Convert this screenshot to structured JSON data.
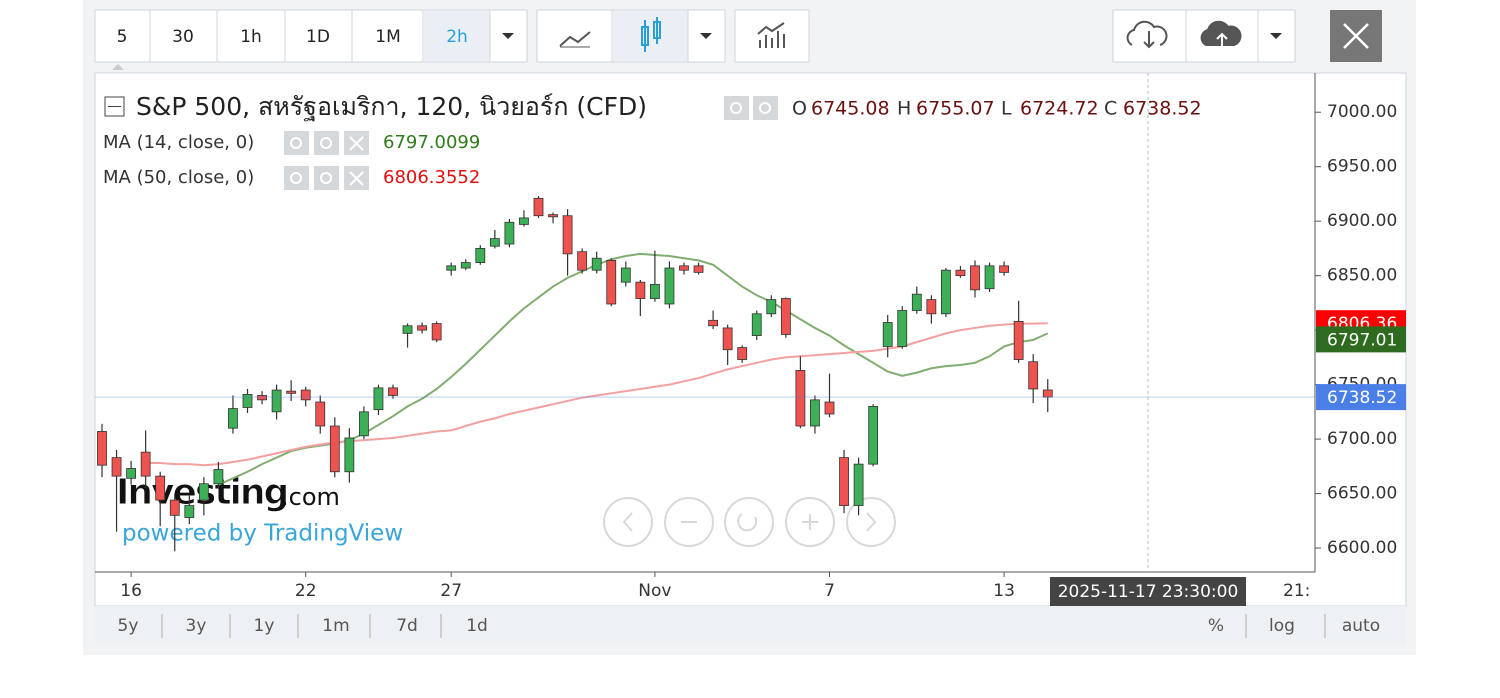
{
  "toolbar": {
    "intervals": [
      "5",
      "30",
      "1h",
      "1D",
      "1M",
      "2h"
    ],
    "active_interval_index": 5
  },
  "chart_data": {
    "type": "candlestick",
    "title": "S&P 500, สหรัฐอเมริกา, 120, นิวยอร์ก (CFD)",
    "ohlc_letters": [
      "O",
      "H",
      "L",
      "C"
    ],
    "categories": [
      null,
      null,
      "16",
      null,
      null,
      null,
      null,
      null,
      null,
      null,
      null,
      null,
      null,
      null,
      "22",
      null,
      null,
      null,
      null,
      null,
      null,
      null,
      null,
      null,
      "27",
      null,
      null,
      null,
      null,
      null,
      null,
      null,
      null,
      null,
      null,
      null,
      null,
      null,
      "Nov",
      null,
      null,
      null,
      null,
      null,
      null,
      null,
      null,
      null,
      null,
      null,
      "7",
      null,
      null,
      null,
      null,
      null,
      null,
      null,
      null,
      null,
      null,
      null,
      "13",
      null,
      null,
      null
    ],
    "open": [
      6707,
      6683,
      6664,
      6688,
      6666,
      6644,
      6628,
      6644,
      6659,
      6710,
      6729,
      6740,
      6725,
      6744,
      6745,
      6734,
      6712,
      6670,
      6703,
      6727,
      6747,
      6797,
      6804,
      6806,
      6855,
      6857,
      6862,
      6877,
      6879,
      6897,
      6921,
      6906,
      6905,
      6872,
      6855,
      6864,
      6844,
      6844,
      6829,
      6824,
      6859,
      6859,
      6809,
      6802,
      6784,
      6795,
      6815,
      6829,
      6763,
      6712,
      6734,
      6683,
      6639,
      6677,
      6785,
      6785,
      6818,
      6828,
      6815,
      6855,
      6859,
      6838,
      6859,
      6808,
      6771,
      6745.08
    ],
    "high": [
      6714,
      6690,
      6680,
      6708,
      6670,
      6650,
      6648,
      6665,
      6679,
      6740,
      6746,
      6744,
      6750,
      6754,
      6748,
      6740,
      6720,
      6710,
      6730,
      6750,
      6750,
      6806,
      6807,
      6808,
      6862,
      6865,
      6878,
      6892,
      6902,
      6910,
      6923,
      6908,
      6911,
      6875,
      6872,
      6866,
      6863,
      6846,
      6873,
      6863,
      6862,
      6862,
      6818,
      6805,
      6786,
      6818,
      6832,
      6830,
      6776,
      6740,
      6760,
      6690,
      6683,
      6732,
      6814,
      6822,
      6840,
      6832,
      6857,
      6859,
      6864,
      6862,
      6863,
      6827,
      6778,
      6755.07
    ],
    "low": [
      6665,
      6615,
      6658,
      6655,
      6620,
      6597,
      6622,
      6630,
      6655,
      6705,
      6724,
      6732,
      6718,
      6735,
      6730,
      6705,
      6665,
      6660,
      6700,
      6722,
      6737,
      6784,
      6797,
      6789,
      6850,
      6855,
      6860,
      6875,
      6876,
      6895,
      6903,
      6898,
      6850,
      6852,
      6852,
      6822,
      6840,
      6813,
      6826,
      6820,
      6851,
      6851,
      6801,
      6768,
      6770,
      6791,
      6812,
      6793,
      6710,
      6705,
      6720,
      6632,
      6630,
      6675,
      6775,
      6783,
      6815,
      6806,
      6812,
      6848,
      6830,
      6835,
      6850,
      6770,
      6733,
      6724.72
    ],
    "close": [
      6676,
      6666,
      6673,
      6666,
      6644,
      6630,
      6639,
      6659,
      6672,
      6728,
      6741,
      6736,
      6745,
      6742,
      6736,
      6712,
      6670,
      6701,
      6725,
      6747,
      6740,
      6804,
      6800,
      6791,
      6859,
      6862,
      6875,
      6884,
      6899,
      6903,
      6905,
      6904,
      6870,
      6855,
      6866,
      6824,
      6857,
      6829,
      6842,
      6857,
      6855,
      6853,
      6804,
      6782,
      6773,
      6815,
      6828,
      6796,
      6712,
      6736,
      6723,
      6639,
      6677,
      6730,
      6807,
      6818,
      6833,
      6815,
      6855,
      6850,
      6837,
      6859,
      6853,
      6773,
      6746,
      6738.52
    ],
    "up_color": "#3daf57",
    "down_color": "#ef5350",
    "overlays": [
      {
        "name": "MA (14, close, 0)",
        "color": "#7fae6f",
        "label_color": "#2e7d1a",
        "badge_color": "#2e6b1f",
        "last_label": "6797.01",
        "values": [
          null,
          null,
          null,
          null,
          null,
          null,
          null,
          null,
          6658,
          6664,
          6670,
          6677,
          6683,
          6689,
          6692,
          6694,
          6696,
          6699,
          6705,
          6713,
          6721,
          6730,
          6737,
          6746,
          6757,
          6769,
          6782,
          6795,
          6808,
          6820,
          6830,
          6840,
          6848,
          6854,
          6860,
          6865,
          6868,
          6870,
          6869,
          6868,
          6866,
          6864,
          6860,
          6850,
          6840,
          6832,
          6826,
          6818,
          6810,
          6802,
          6795,
          6786,
          6778,
          6770,
          6762,
          6758,
          6761,
          6765,
          6767,
          6768,
          6770,
          6776,
          6785,
          6789,
          6791,
          6797.0099
        ]
      },
      {
        "name": "MA (50, close, 0)",
        "color": "#f4a0a0",
        "label_color": "#e01010",
        "badge_color": "#ff0000",
        "last_label": "6806.36",
        "values": [
          null,
          null,
          null,
          6678,
          6678,
          6677,
          6677,
          6676,
          6677,
          6679,
          6681,
          6684,
          6687,
          6690,
          6693,
          6695,
          6697,
          6698,
          6699,
          6700,
          6701,
          6703,
          6705,
          6707,
          6708,
          6712,
          6716,
          6719,
          6723,
          6726,
          6729,
          6732,
          6735,
          6738,
          6740,
          6742,
          6744,
          6746,
          6748,
          6750,
          6753,
          6756,
          6760,
          6764,
          6767,
          6770,
          6773,
          6775,
          6776,
          6777,
          6778,
          6779,
          6780,
          6781,
          6783,
          6785,
          6789,
          6793,
          6797,
          6800,
          6802,
          6804,
          6805,
          6806,
          6806,
          6806.3552
        ]
      }
    ],
    "ylim": [
      6578,
      7036
    ],
    "yticks": [
      {
        "value": 6600,
        "label": "6600.00"
      },
      {
        "value": 6650,
        "label": "6650.00"
      },
      {
        "value": 6700,
        "label": "6700.00"
      },
      {
        "value": 6750,
        "label": "6750.00"
      },
      {
        "value": 6800,
        "label": "6800.00"
      },
      {
        "value": 6850,
        "label": "6850.00"
      },
      {
        "value": 6900,
        "label": "6900.00"
      },
      {
        "value": 6950,
        "label": "6950.00"
      },
      {
        "value": 7000,
        "label": "7000.00"
      }
    ],
    "last_badge_color": "#4a7fe8",
    "time_axis_cut_label": "21:",
    "crosshair_time_label": "2025-11-17 23:30:00",
    "watermark": {
      "brand": "Investing",
      "suffix": ".com",
      "tagline": "powered by TradingView"
    }
  },
  "footer": {
    "ranges": [
      "5y",
      "3y",
      "1y",
      "1m",
      "7d",
      "1d"
    ],
    "scale_options": [
      "%",
      "log",
      "auto"
    ]
  }
}
